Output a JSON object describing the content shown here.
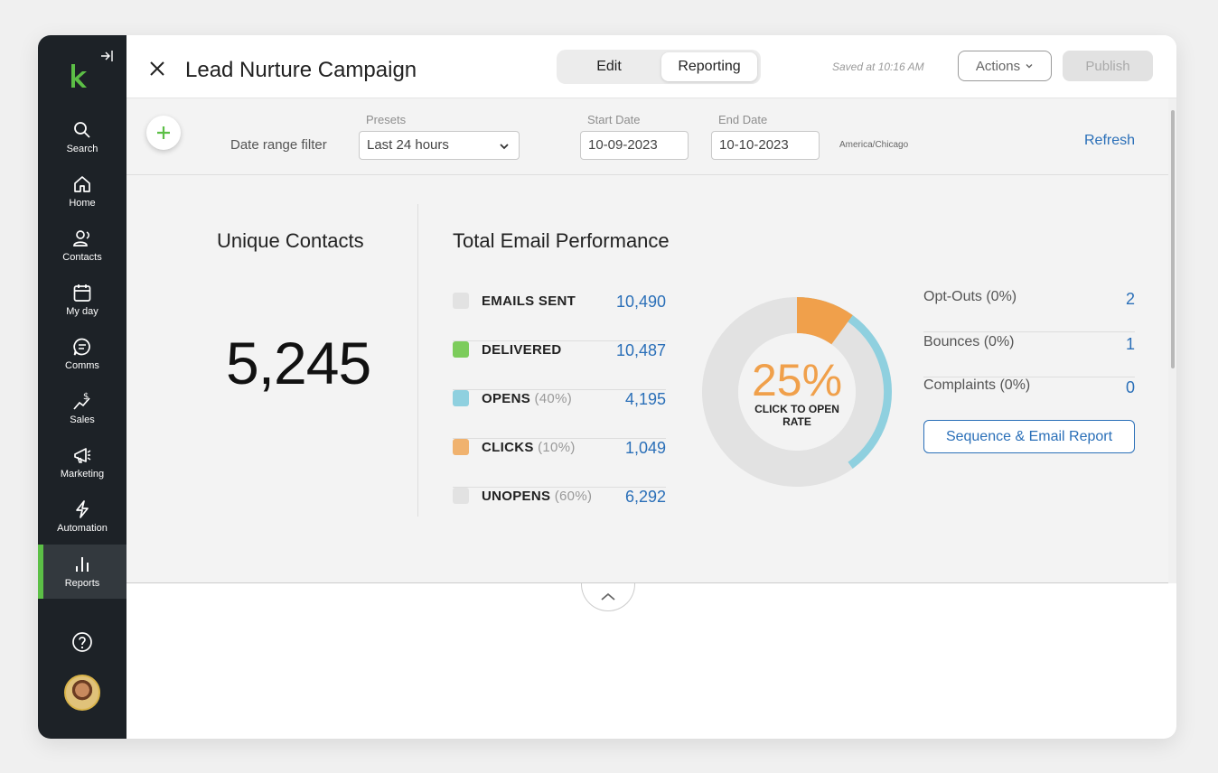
{
  "colors": {
    "sidebar_bg": "#1d2227",
    "brand_green": "#5cbf46",
    "link_blue": "#2a6fb8",
    "orange": "#f0a04b",
    "opens_blue": "#8fd0df",
    "grey_swatch": "#e2e2e2"
  },
  "sidebar": {
    "items": [
      {
        "label": "Search",
        "icon": "search-icon"
      },
      {
        "label": "Home",
        "icon": "home-icon"
      },
      {
        "label": "Contacts",
        "icon": "contacts-icon"
      },
      {
        "label": "My day",
        "icon": "calendar-icon"
      },
      {
        "label": "Comms",
        "icon": "chat-icon"
      },
      {
        "label": "Sales",
        "icon": "sales-icon"
      },
      {
        "label": "Marketing",
        "icon": "megaphone-icon"
      },
      {
        "label": "Automation",
        "icon": "lightning-icon"
      },
      {
        "label": "Reports",
        "icon": "bar-chart-icon"
      }
    ]
  },
  "header": {
    "title": "Lead Nurture Campaign",
    "tabs": [
      "Edit",
      "Reporting"
    ],
    "active_tab": "Reporting",
    "saved_text": "Saved at 10:16 AM",
    "actions_label": "Actions",
    "publish_label": "Publish"
  },
  "filter": {
    "range_label": "Date range filter",
    "presets_label": "Presets",
    "preset_value": "Last 24 hours",
    "start_label": "Start Date",
    "start_value": "10-09-2023",
    "end_label": "End Date",
    "end_value": "10-10-2023",
    "timezone": "America/Chicago",
    "refresh_label": "Refresh"
  },
  "unique_contacts": {
    "title": "Unique Contacts",
    "value": "5,245"
  },
  "email_performance": {
    "title": "Total Email Performance",
    "metrics": [
      {
        "label": "EMAILS SENT",
        "pct": "",
        "value": "10,490",
        "color": "#e2e2e2"
      },
      {
        "label": "DELIVERED",
        "pct": "",
        "value": "10,487",
        "color": "#7ccc5b"
      },
      {
        "label": "OPENS",
        "pct": "(40%)",
        "value": "4,195",
        "color": "#8fd0df"
      },
      {
        "label": "CLICKS",
        "pct": "(10%)",
        "value": "1,049",
        "color": "#f0b26e"
      },
      {
        "label": "UNOPENS",
        "pct": "(60%)",
        "value": "6,292",
        "color": "#e2e2e2"
      }
    ],
    "donut": {
      "center_value": "25%",
      "center_label": "CLICK TO OPEN RATE",
      "opens_fraction": 0.4,
      "clicks_fraction": 0.1
    }
  },
  "stats": {
    "items": [
      {
        "label": "Opt-Outs (0%)",
        "value": "2"
      },
      {
        "label": "Bounces (0%)",
        "value": "1"
      },
      {
        "label": "Complaints (0%)",
        "value": "0"
      }
    ],
    "report_button": "Sequence & Email Report"
  }
}
